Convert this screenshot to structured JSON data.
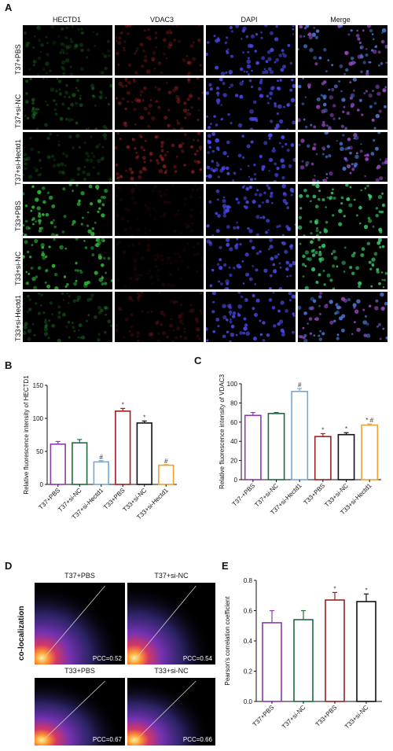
{
  "panel_letters": {
    "A": "A",
    "B": "B",
    "C": "C",
    "D": "D",
    "E": "E"
  },
  "panelA": {
    "columns": [
      "HECTD1",
      "VDAC3",
      "DAPI",
      "Merge"
    ],
    "rows": [
      "T37+PBS",
      "T37+si-NC",
      "T37+si-Hectd1",
      "T33+PBS",
      "T33+si-NC",
      "T33+si-Hectd1"
    ],
    "colors": {
      "HECTD1": "#2fbf3a",
      "VDAC3": "#c0202a",
      "DAPI": "#3a3ad8",
      "Merge": "#36b8a6"
    }
  },
  "chart_data": [
    {
      "type": "bar",
      "panel": "B",
      "ylabel": "Relative fluorescence intensity of HECTD1",
      "categories": [
        "T37+PBS",
        "T37+si-NC",
        "T37+si-Hectd1",
        "T33+PBS",
        "T33+si-NC",
        "T33+si-Hectd1"
      ],
      "values": [
        61,
        63,
        34,
        111,
        93,
        29
      ],
      "errors": [
        4,
        5,
        2,
        4,
        3,
        1
      ],
      "annotations": [
        "",
        "",
        "#",
        "*",
        "*",
        "#"
      ],
      "colors": [
        "#8b3aa8",
        "#1d6b3f",
        "#6fa8dc",
        "#9b1f1f",
        "#111111",
        "#f0a030"
      ],
      "ylim": [
        0,
        150
      ],
      "yticks": [
        0,
        50,
        100,
        150
      ]
    },
    {
      "type": "bar",
      "panel": "C",
      "ylabel": "Relative fluorescence intensity of VDAC3",
      "categories": [
        "T37-+PBS",
        "T37+si-NC",
        "T37+si-Hectd1",
        "T33+PBS",
        "T33+si-NC",
        "T33+si-Hectd1"
      ],
      "values": [
        67,
        69,
        92,
        45,
        47,
        57
      ],
      "errors": [
        3,
        1,
        3,
        3,
        2,
        1
      ],
      "annotations": [
        "",
        "",
        "#",
        "*",
        "*",
        "* #"
      ],
      "colors": [
        "#8b3aa8",
        "#1d6b3f",
        "#6fa8dc",
        "#9b1f1f",
        "#111111",
        "#f0a030"
      ],
      "ylim": [
        0,
        100
      ],
      "yticks": [
        0,
        20,
        40,
        60,
        80,
        100
      ]
    },
    {
      "type": "bar",
      "panel": "E",
      "ylabel": "Pearson's correlation coefficient",
      "categories": [
        "T37+PBS",
        "T37+si-NC",
        "T33+PBS",
        "T33+si-NC"
      ],
      "values": [
        0.52,
        0.54,
        0.67,
        0.66
      ],
      "errors": [
        0.08,
        0.06,
        0.05,
        0.05
      ],
      "annotations": [
        "",
        "",
        "*",
        "*"
      ],
      "colors": [
        "#8b3aa8",
        "#1d6b3f",
        "#9b1f1f",
        "#111111"
      ],
      "ylim": [
        0,
        0.8
      ],
      "yticks": [
        "0.0",
        "0.2",
        "0.4",
        "0.6",
        "0.8"
      ]
    }
  ],
  "panelD": {
    "side_label": "co-localization",
    "plots": [
      {
        "title": "T37+PBS",
        "pcc": "PCC=0.52"
      },
      {
        "title": "T37+si-NC",
        "pcc": "PCC=0.54"
      },
      {
        "title": "T33+PBS",
        "pcc": "PCC=0.67"
      },
      {
        "title": "T33+si-NC",
        "pcc": "PCC=0.66"
      }
    ]
  }
}
